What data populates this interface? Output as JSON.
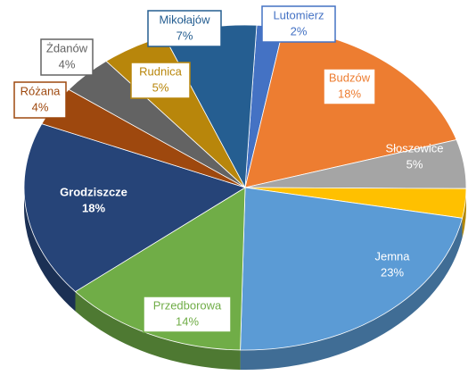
{
  "chart_data": {
    "type": "pie",
    "categories": [
      "Lutomierz",
      "Budzów",
      "Słoszowice",
      null,
      "Jemna",
      "Przedborowa",
      "Grodziszcze",
      "Różana",
      "Żdanów",
      "Rudnica",
      "Mikołajów"
    ],
    "values": [
      2,
      18,
      5,
      3,
      23,
      14,
      18,
      4,
      4,
      5,
      7
    ],
    "value_labels": [
      "2%",
      "18%",
      "5%",
      null,
      "23%",
      "14%",
      "18%",
      "4%",
      "4%",
      "5%",
      "7%"
    ],
    "colors": [
      "#4472c4",
      "#ed7d31",
      "#a5a5a5",
      "#ffc000",
      "#5b9bd5",
      "#70ad47",
      "#264478",
      "#9e480e",
      "#636363",
      "#b8860b",
      "#255e91"
    ]
  }
}
